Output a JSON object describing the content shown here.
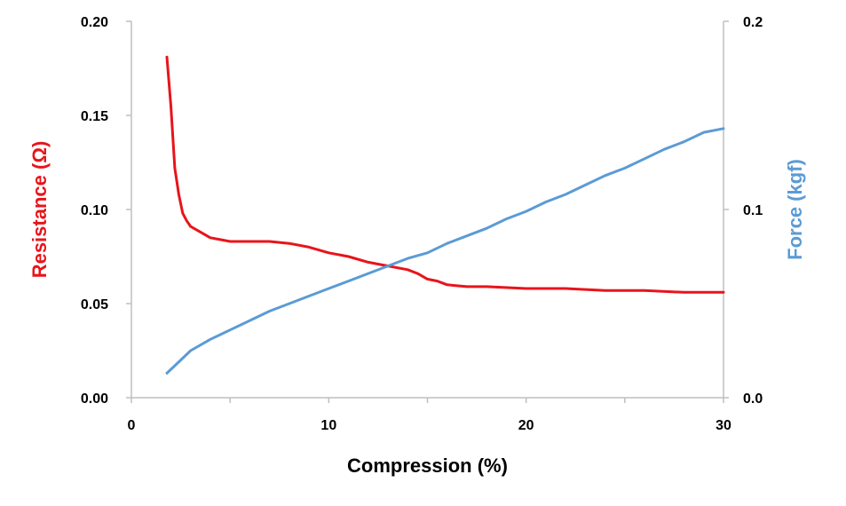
{
  "chart_data": {
    "type": "line",
    "title": "",
    "xlabel": "Compression (%)",
    "ylabel_left": "Resistance (Ω)",
    "ylabel_right": "Force (kgf)",
    "xlim": [
      0,
      30
    ],
    "ylim_left": [
      0,
      0.2
    ],
    "ylim_right": [
      0,
      0.2
    ],
    "xticks": [
      "0",
      "10",
      "20",
      "30"
    ],
    "yticks_left": [
      "0.00",
      "0.05",
      "0.10",
      "0.15",
      "0.20"
    ],
    "yticks_right": [
      "0.0",
      "0.1",
      "0.2"
    ],
    "grid": false,
    "legend": "none",
    "series": [
      {
        "axis": "left",
        "color": "#e8141b",
        "x": [
          1.8,
          2.0,
          2.2,
          2.4,
          2.6,
          2.8,
          3.0,
          3.5,
          4.0,
          4.5,
          5.0,
          6.0,
          7.0,
          8.0,
          9.0,
          10.0,
          11.0,
          12.0,
          13.0,
          14.0,
          14.5,
          15.0,
          15.5,
          16.0,
          17.0,
          18.0,
          20.0,
          22.0,
          24.0,
          26.0,
          28.0,
          30.0
        ],
        "y": [
          0.181,
          0.155,
          0.122,
          0.108,
          0.098,
          0.094,
          0.091,
          0.088,
          0.085,
          0.084,
          0.083,
          0.083,
          0.083,
          0.082,
          0.08,
          0.077,
          0.075,
          0.072,
          0.07,
          0.068,
          0.066,
          0.063,
          0.062,
          0.06,
          0.059,
          0.059,
          0.058,
          0.058,
          0.057,
          0.057,
          0.056,
          0.056
        ]
      },
      {
        "axis": "right",
        "color": "#5b9bd5",
        "x": [
          1.8,
          2.5,
          3.0,
          4.0,
          5.0,
          6.0,
          7.0,
          8.0,
          9.0,
          10.0,
          11.0,
          12.0,
          13.0,
          14.0,
          15.0,
          16.0,
          17.0,
          18.0,
          19.0,
          20.0,
          21.0,
          22.0,
          23.0,
          24.0,
          25.0,
          26.0,
          27.0,
          28.0,
          29.0,
          30.0
        ],
        "y": [
          0.013,
          0.02,
          0.025,
          0.031,
          0.036,
          0.041,
          0.046,
          0.05,
          0.054,
          0.058,
          0.062,
          0.066,
          0.07,
          0.074,
          0.077,
          0.082,
          0.086,
          0.09,
          0.095,
          0.099,
          0.104,
          0.108,
          0.113,
          0.118,
          0.122,
          0.127,
          0.132,
          0.136,
          0.141,
          0.143
        ]
      }
    ]
  }
}
